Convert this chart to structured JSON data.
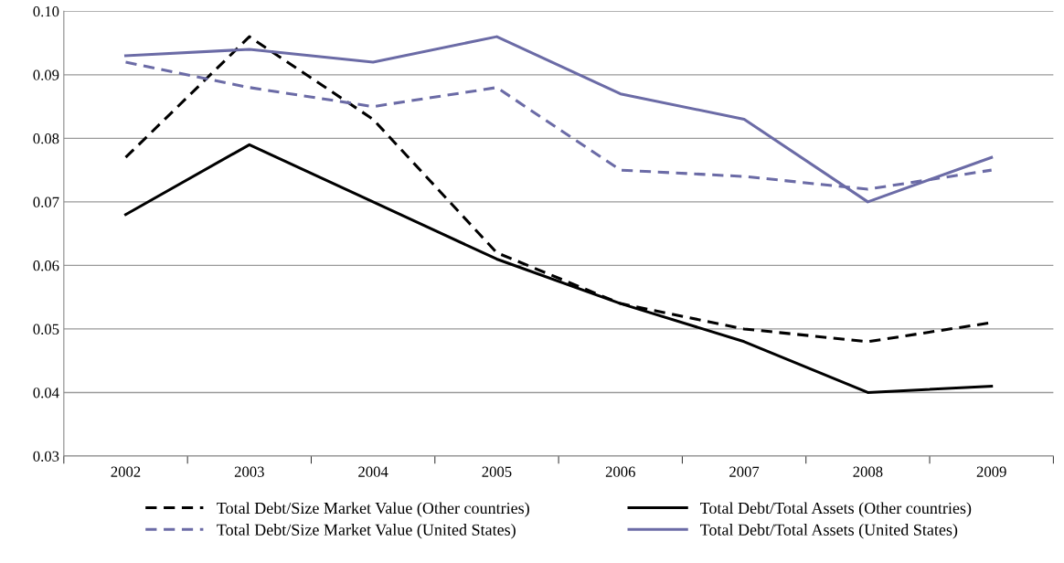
{
  "chart_data": {
    "type": "line",
    "categories": [
      "2002",
      "2003",
      "2004",
      "2005",
      "2006",
      "2007",
      "2008",
      "2009"
    ],
    "series": [
      {
        "name": "Total Debt/Size Market Value (Other countries)",
        "color": "#000000",
        "line_style": "dashed",
        "values": [
          0.077,
          0.096,
          0.083,
          0.062,
          0.054,
          0.05,
          0.048,
          0.051
        ]
      },
      {
        "name": "Total Debt/Total Assets (Other countries)",
        "color": "#000000",
        "line_style": "solid",
        "values": [
          0.068,
          0.079,
          0.07,
          0.061,
          0.054,
          0.048,
          0.04,
          0.041
        ]
      },
      {
        "name": "Total Debt/Size Market Value (United States)",
        "color": "#6b6ba6",
        "line_style": "dashed",
        "values": [
          0.092,
          0.088,
          0.085,
          0.088,
          0.075,
          0.074,
          0.072,
          0.075
        ]
      },
      {
        "name": "Total Debt/Total Assets (United States)",
        "color": "#6b6ba6",
        "line_style": "solid",
        "values": [
          0.093,
          0.094,
          0.092,
          0.096,
          0.087,
          0.083,
          0.07,
          0.077
        ]
      }
    ],
    "ylim": [
      0.03,
      0.1
    ],
    "yticks": [
      {
        "value": 0.03,
        "label": "0.03"
      },
      {
        "value": 0.04,
        "label": "0.04"
      },
      {
        "value": 0.05,
        "label": "0.05"
      },
      {
        "value": 0.06,
        "label": "0.06"
      },
      {
        "value": 0.07,
        "label": "0.07"
      },
      {
        "value": 0.08,
        "label": "0.08"
      },
      {
        "value": 0.09,
        "label": "0.09"
      },
      {
        "value": 0.1,
        "label": "0.10"
      }
    ],
    "grid": "y",
    "legend": "bottom",
    "marker": "none"
  }
}
